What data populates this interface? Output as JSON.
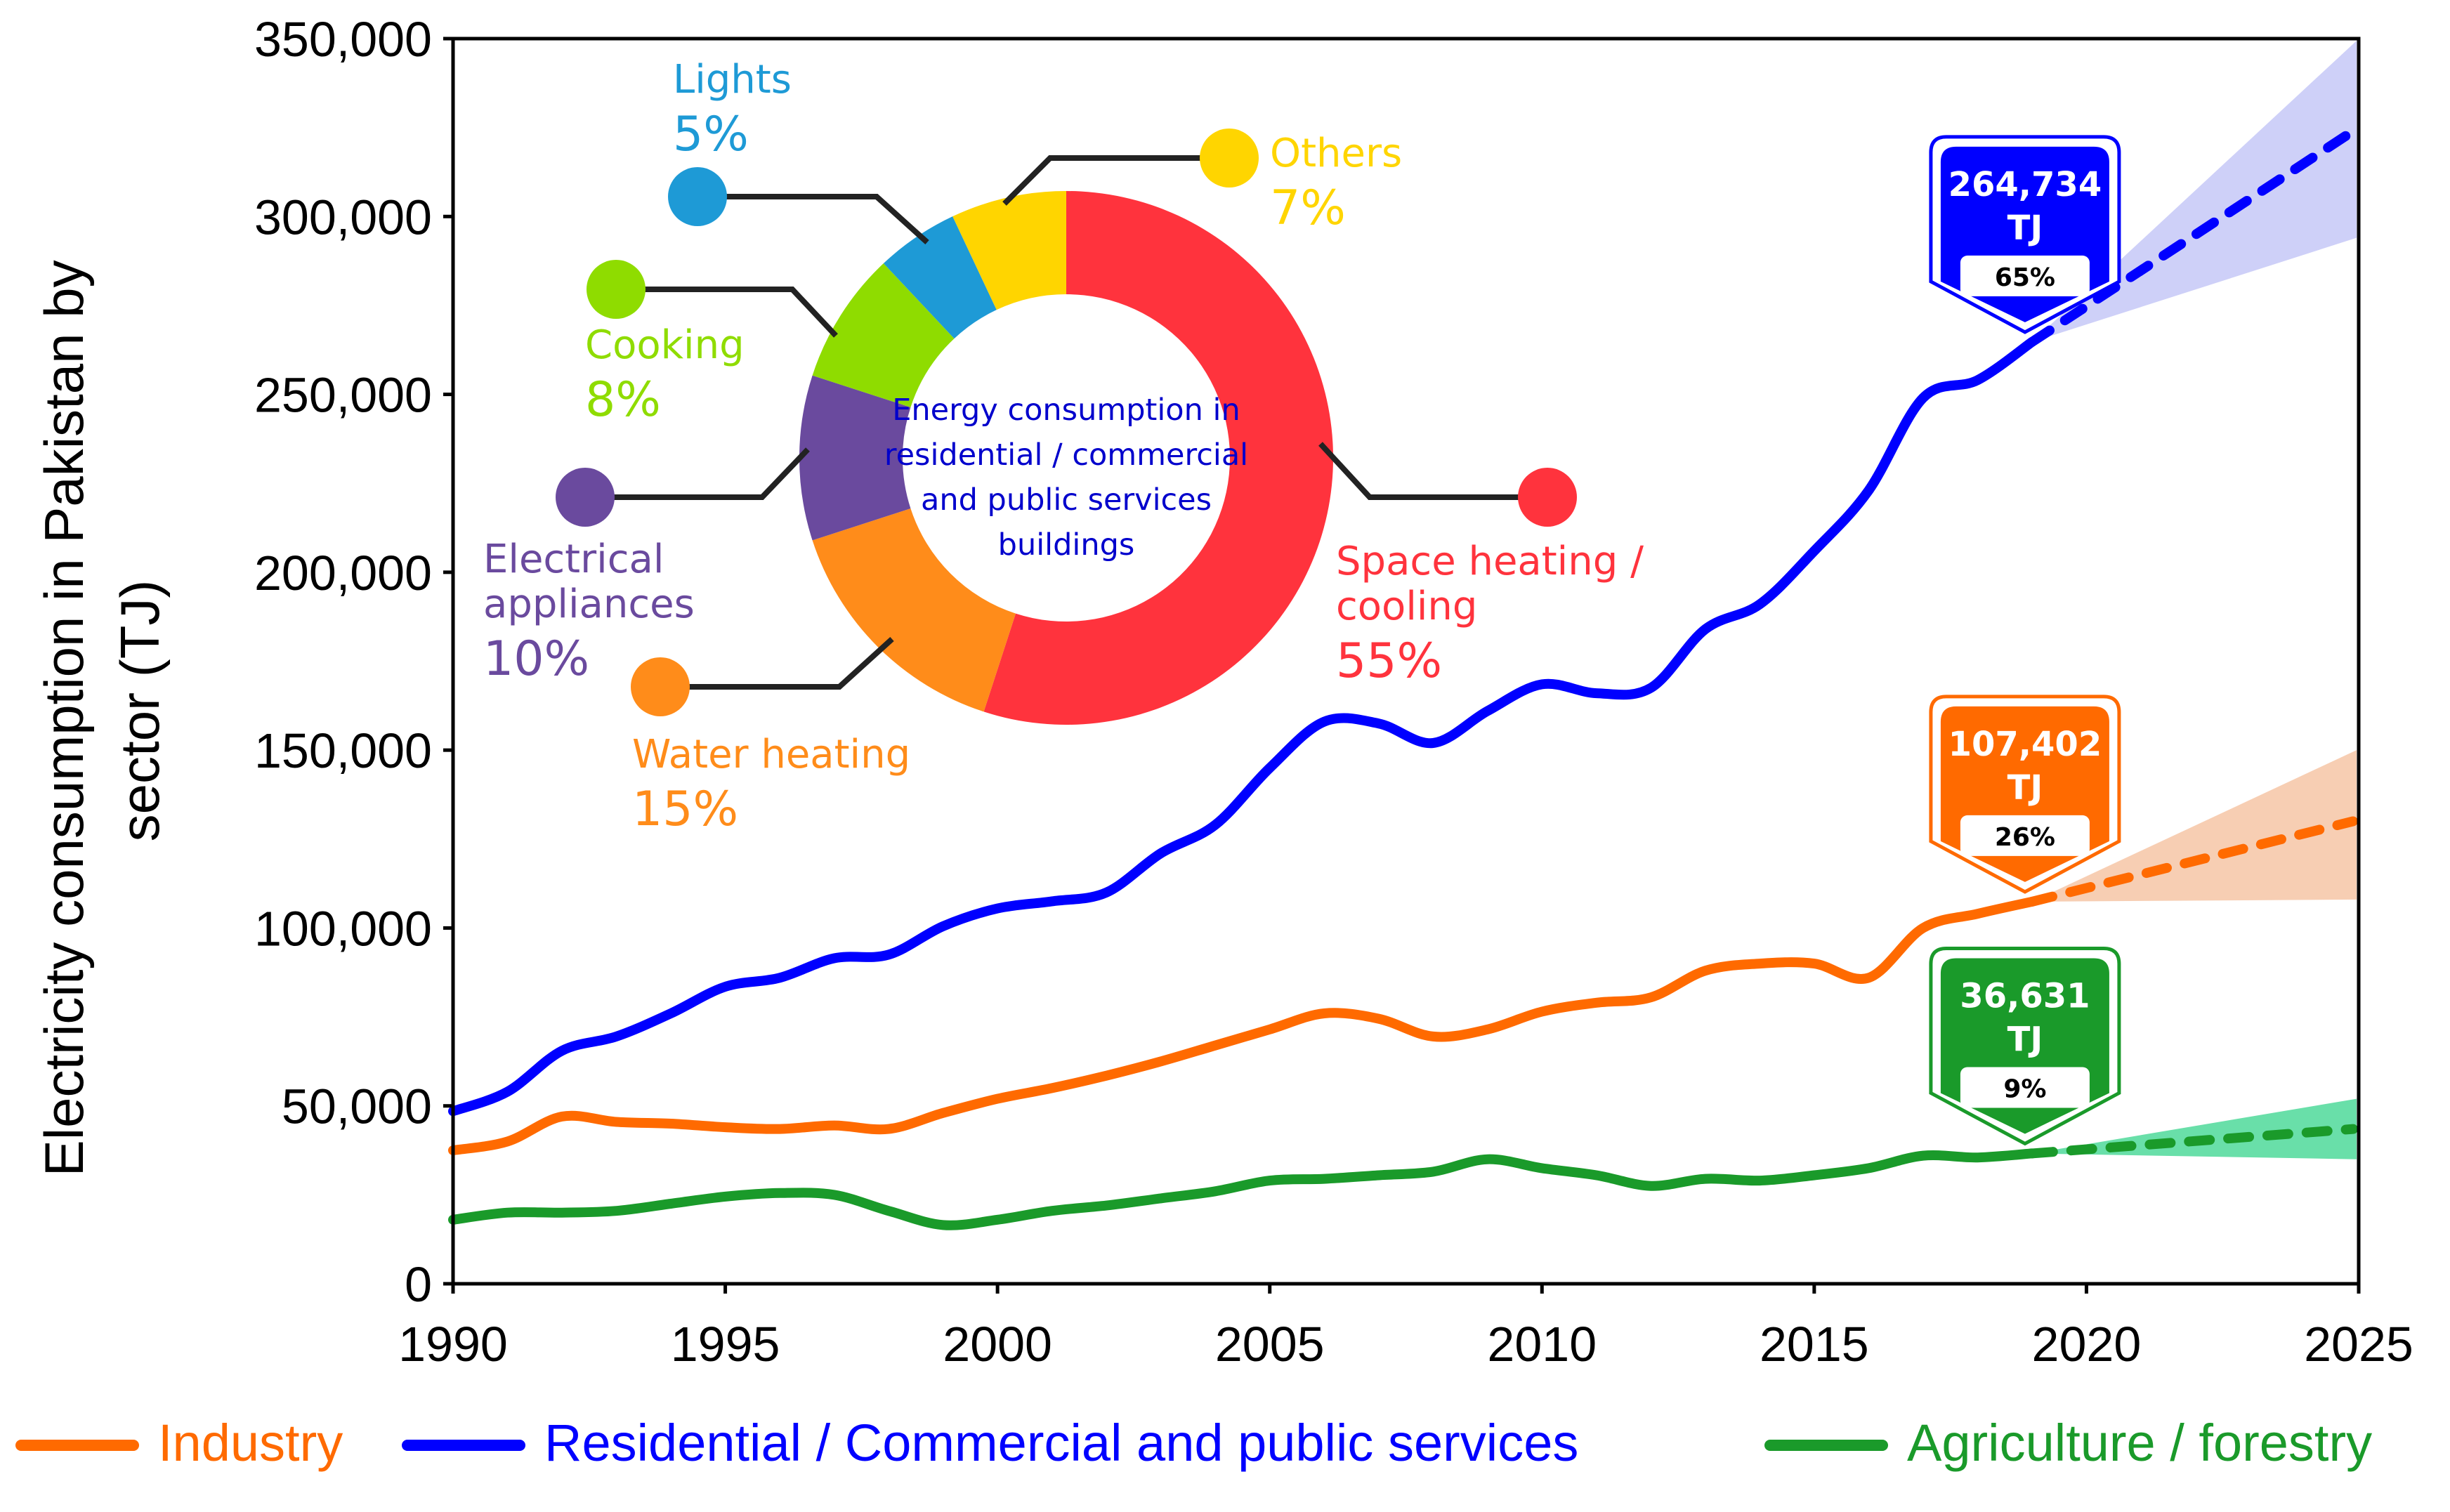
{
  "chart_data": {
    "type": "line",
    "ylabel": "Electricity consumption in Pakistan by sector (TJ)",
    "ylabel_lines": [
      "Electricity consumption in Pakistan by",
      "sector (TJ)"
    ],
    "xlim": [
      1990,
      2025
    ],
    "ylim": [
      0,
      350000
    ],
    "x_ticks": [
      1990,
      1995,
      2000,
      2005,
      2010,
      2015,
      2020,
      2025
    ],
    "x_tick_labels": [
      "1990",
      "1995",
      "2000",
      "2005",
      "2010",
      "2015",
      "2020",
      "2025"
    ],
    "y_ticks": [
      0,
      50000,
      100000,
      150000,
      200000,
      250000,
      300000,
      350000
    ],
    "y_tick_labels": [
      "0",
      "50,000",
      "100,000",
      "150,000",
      "200,000",
      "250,000",
      "300,000",
      "350,000"
    ],
    "grid": false,
    "legend_position": "bottom",
    "series": [
      {
        "name": "Industry",
        "color": "#ff6a00",
        "x": [
          1990,
          1991,
          1992,
          1993,
          1994,
          1995,
          1996,
          1997,
          1998,
          1999,
          2000,
          2001,
          2002,
          2003,
          2004,
          2005,
          2006,
          2007,
          2008,
          2009,
          2010,
          2011,
          2012,
          2013,
          2014,
          2015,
          2016,
          2017,
          2018,
          2019
        ],
        "values": [
          37500,
          40000,
          47000,
          45500,
          45000,
          44000,
          43500,
          44500,
          43500,
          48000,
          52000,
          55000,
          58500,
          62500,
          67000,
          71500,
          76000,
          74500,
          69500,
          71500,
          76500,
          79000,
          80500,
          88000,
          90000,
          90000,
          86000,
          100000,
          104000,
          107402
        ],
        "forecast": {
          "x": [
            2019,
            2025
          ],
          "values": [
            107402,
            130000
          ],
          "lower": [
            107402,
            108000
          ],
          "upper": [
            107402,
            150000
          ]
        },
        "callout": {
          "value": "107,402",
          "unit": "TJ",
          "share": "26%"
        }
      },
      {
        "name": "Residential / Commercial and public services",
        "color": "#0000ff",
        "x": [
          1990,
          1991,
          1992,
          1993,
          1994,
          1995,
          1996,
          1997,
          1998,
          1999,
          2000,
          2001,
          2002,
          2003,
          2004,
          2005,
          2006,
          2007,
          2008,
          2009,
          2010,
          2011,
          2012,
          2013,
          2014,
          2015,
          2016,
          2017,
          2018,
          2019
        ],
        "values": [
          48500,
          54000,
          65500,
          69500,
          76000,
          83500,
          86000,
          91500,
          92500,
          100500,
          105500,
          107500,
          110000,
          121000,
          129000,
          145000,
          158000,
          157500,
          152000,
          161000,
          168500,
          166000,
          167500,
          184000,
          191000,
          206000,
          223000,
          249000,
          254000,
          264734
        ],
        "forecast": {
          "x": [
            2019,
            2025
          ],
          "values": [
            264734,
            324000
          ],
          "lower": [
            264734,
            294000
          ],
          "upper": [
            264734,
            352000
          ]
        },
        "callout": {
          "value": "264,734",
          "unit": "TJ",
          "share": "65%"
        }
      },
      {
        "name": "Agriculture / forestry",
        "color": "#1a9a2a",
        "x": [
          1990,
          1991,
          1992,
          1993,
          1994,
          1995,
          1996,
          1997,
          1998,
          1999,
          2000,
          2001,
          2002,
          2003,
          2004,
          2005,
          2006,
          2007,
          2008,
          2009,
          2010,
          2011,
          2012,
          2013,
          2014,
          2015,
          2016,
          2017,
          2018,
          2019
        ],
        "values": [
          18000,
          20000,
          20000,
          20500,
          22500,
          24500,
          25500,
          25000,
          20500,
          16500,
          18000,
          20500,
          22000,
          24000,
          26000,
          29000,
          29500,
          30500,
          31500,
          35000,
          32500,
          30500,
          27500,
          29500,
          29000,
          30500,
          32500,
          36000,
          35500,
          36631
        ],
        "forecast": {
          "x": [
            2019,
            2025
          ],
          "values": [
            36631,
            43500
          ],
          "lower": [
            36631,
            35000
          ],
          "upper": [
            36631,
            52000
          ]
        },
        "callout": {
          "value": "36,631",
          "unit": "TJ",
          "share": "9%"
        }
      }
    ]
  },
  "inset": {
    "type": "pie",
    "center_text": [
      "Energy consumption in",
      "residential / commercial",
      "and public services",
      "buildings"
    ],
    "slices": [
      {
        "label": [
          "Space heating /",
          "cooling"
        ],
        "value": 55,
        "pct": "55%",
        "color": "#ff333d"
      },
      {
        "label": [
          "Water heating"
        ],
        "value": 15,
        "pct": "15%",
        "color": "#ff8c1a"
      },
      {
        "label": [
          "Electrical",
          "appliances"
        ],
        "value": 10,
        "pct": "10%",
        "color": "#6a4a9e"
      },
      {
        "label": [
          "Cooking"
        ],
        "value": 8,
        "pct": "8%",
        "color": "#8fdc00"
      },
      {
        "label": [
          "Lights"
        ],
        "value": 5,
        "pct": "5%",
        "color": "#1e9ad6"
      },
      {
        "label": [
          "Others"
        ],
        "value": 7,
        "pct": "7%",
        "color": "#ffd500"
      }
    ]
  }
}
